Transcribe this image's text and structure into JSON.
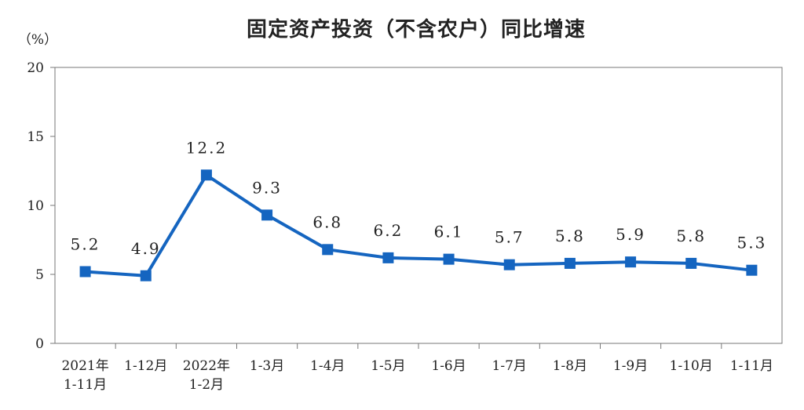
{
  "chart_data": {
    "type": "line",
    "title": "固定资产投资（不含农户）同比增速",
    "ylabel": "（%）",
    "xlabel": "",
    "ylim": [
      0,
      20
    ],
    "yticks": [
      0,
      5,
      10,
      15,
      20
    ],
    "grid": false,
    "legend": "none",
    "line_color": "#1565c0",
    "categories": [
      [
        "2021年",
        "1-11月"
      ],
      [
        "1-12月"
      ],
      [
        "2022年",
        "1-2月"
      ],
      [
        "1-3月"
      ],
      [
        "1-4月"
      ],
      [
        "1-5月"
      ],
      [
        "1-6月"
      ],
      [
        "1-7月"
      ],
      [
        "1-8月"
      ],
      [
        "1-9月"
      ],
      [
        "1-10月"
      ],
      [
        "1-11月"
      ]
    ],
    "values": [
      5.2,
      4.9,
      12.2,
      9.3,
      6.8,
      6.2,
      6.1,
      5.7,
      5.8,
      5.9,
      5.8,
      5.3
    ],
    "data_labels": [
      "5.2",
      "4.9",
      "12.2",
      "9.3",
      "6.8",
      "6.2",
      "6.1",
      "5.7",
      "5.8",
      "5.9",
      "5.8",
      "5.3"
    ]
  }
}
